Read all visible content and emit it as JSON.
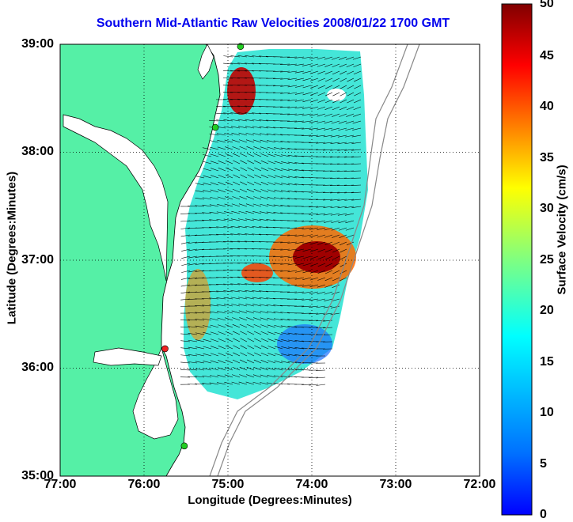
{
  "title": "Southern Mid-Atlantic Raw Velocities 2008/01/22 1700 GMT",
  "x_axis": {
    "label": "Longitude (Degrees:Minutes)",
    "ticks": [
      "77:00",
      "76:00",
      "75:00",
      "74:00",
      "73:00",
      "72:00"
    ],
    "range_deg_west": [
      77,
      72
    ]
  },
  "y_axis": {
    "label": "Latitude (Degrees:Minutes)",
    "ticks": [
      "39:00",
      "38:00",
      "37:00",
      "36:00",
      "35:00"
    ],
    "range_deg_north": [
      35,
      39
    ]
  },
  "colorbar": {
    "label": "Surface Velocity (cm/s)",
    "ticks": [
      "50",
      "45",
      "40",
      "35",
      "30",
      "25",
      "20",
      "15",
      "10",
      "5",
      "0"
    ],
    "range": [
      0,
      50
    ],
    "colormap": "jet"
  },
  "colors": {
    "land": "#55f0a6",
    "coastline": "#000000",
    "isobath": "#888888",
    "title": "#0000ee"
  },
  "grid": "dotted",
  "radar_sites": [
    {
      "color": "#22cc22",
      "lon": 74.85,
      "lat": 38.98
    },
    {
      "color": "#22cc22",
      "lon": 75.15,
      "lat": 38.23
    },
    {
      "color": "#ee2222",
      "lon": 75.75,
      "lat": 36.18
    },
    {
      "color": "#22cc22",
      "lon": 75.52,
      "lat": 35.28
    }
  ]
}
